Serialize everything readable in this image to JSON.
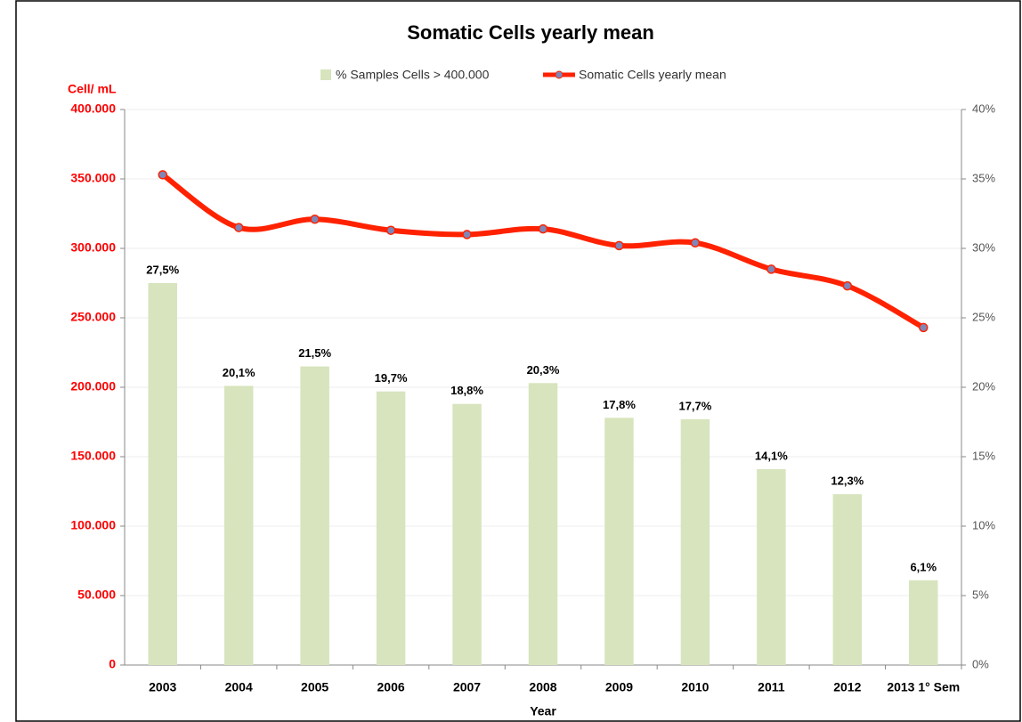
{
  "chart_data": {
    "type": "combo",
    "title": "Somatic Cells yearly mean",
    "y_axis_label": "Cell/ mL",
    "x_axis_label": "Year",
    "categories": [
      "2003",
      "2004",
      "2005",
      "2006",
      "2007",
      "2008",
      "2009",
      "2010",
      "2011",
      "2012",
      "2013 1° Sem"
    ],
    "series": [
      {
        "name": "% Samples Cells > 400.000",
        "type": "bar",
        "axis": "y2",
        "color": "#d7e4bd",
        "values": [
          27.5,
          20.1,
          21.5,
          19.7,
          18.8,
          20.3,
          17.8,
          17.7,
          14.1,
          12.3,
          6.1
        ],
        "value_labels": [
          "27,5%",
          "20,1%",
          "21,5%",
          "19,7%",
          "18,8%",
          "20,3%",
          "17,8%",
          "17,7%",
          "14,1%",
          "12,3%",
          "6,1%"
        ]
      },
      {
        "name": "Somatic Cells yearly mean",
        "type": "line",
        "axis": "y",
        "color": "#ff2200",
        "marker_color": "#7f86b8",
        "values": [
          353000,
          315000,
          321000,
          313000,
          310000,
          314000,
          302000,
          304000,
          285000,
          273000,
          243000
        ]
      }
    ],
    "ylim": [
      0,
      400000
    ],
    "yticks": [
      0,
      {
        "value": 50000,
        "label": "50.000"
      },
      {
        "value": 100000,
        "label": "100.000"
      },
      {
        "value": 150000,
        "label": "150.000"
      },
      {
        "value": 200000,
        "label": "200.000"
      },
      {
        "value": 250000,
        "label": "250.000"
      },
      {
        "value": 300000,
        "label": "300.000"
      },
      {
        "value": 350000,
        "label": "350.000"
      },
      {
        "value": 400000,
        "label": "400.000"
      }
    ],
    "y2lim": [
      0,
      40
    ],
    "y2ticks": [
      {
        "value": 0,
        "label": "0%"
      },
      {
        "value": 5,
        "label": "5%"
      },
      {
        "value": 10,
        "label": "10%"
      },
      {
        "value": 15,
        "label": "15%"
      },
      {
        "value": 20,
        "label": "20%"
      },
      {
        "value": 25,
        "label": "25%"
      },
      {
        "value": 30,
        "label": "30%"
      },
      {
        "value": 35,
        "label": "35%"
      },
      {
        "value": 40,
        "label": "40%"
      }
    ],
    "grid": true,
    "y_axis_color": "#ff0000"
  }
}
